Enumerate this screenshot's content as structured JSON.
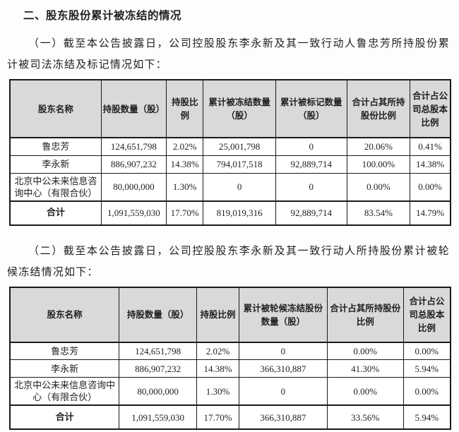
{
  "document": {
    "section_title": "二、股东股份累计被冻结的情况",
    "paragraph_1": "（一）截至本公告披露日，公司控股股东李永新及其一致行动人鲁忠芳所持股份累计被司法冻结及标记情况如下：",
    "paragraph_2": "（二）截至本公告披露日，公司控股股东李永新及其一致行动人所持股份累计被轮候冻结情况如下："
  },
  "colors": {
    "header_bg": "#d9d9d9",
    "border": "#1a1a1a",
    "text": "#1f1f1f",
    "page_bg": "#fdfdfd"
  },
  "frozen_table": {
    "headers": [
      "股东名称",
      "持股数量（股）",
      "持股比例",
      "累计被冻结数量（股）",
      "累计被标记数量（股）",
      "合计占其所持股份比例",
      "合计占公司总股本比例"
    ],
    "rows": [
      [
        "鲁忠芳",
        "124,651,798",
        "2.02%",
        "25,001,798",
        "0",
        "20.06%",
        "0.41%"
      ],
      [
        "李永新",
        "886,907,232",
        "14.38%",
        "794,017,518",
        "92,889,714",
        "100.00%",
        "14.38%"
      ],
      [
        "北京中公未来信息咨询中心（有限合伙）",
        "80,000,000",
        "1.30%",
        "0",
        "0",
        "0.00%",
        "0.00%"
      ],
      [
        "合计",
        "1,091,559,030",
        "17.70%",
        "819,019,316",
        "92,889,714",
        "83.54%",
        "14.79%"
      ]
    ]
  },
  "waiting_freeze_table": {
    "headers": [
      "股东名称",
      "持股数量（股）",
      "持股比例",
      "累计被轮候冻结股份数量（股）",
      "合计占其所持股份比例",
      "合计占公司总股本比例"
    ],
    "rows": [
      [
        "鲁忠芳",
        "124,651,798",
        "2.02%",
        "0",
        "0.00%",
        "0.00%"
      ],
      [
        "李永新",
        "886,907,232",
        "14.38%",
        "366,310,887",
        "41.30%",
        "5.94%"
      ],
      [
        "北京中公未来信息咨询中心（有限合伙）",
        "80,000,000",
        "1.30%",
        "0",
        "0.00%",
        "0.00%"
      ],
      [
        "合计",
        "1,091,559,030",
        "17.70%",
        "366,310,887",
        "33.56%",
        "5.94%"
      ]
    ]
  }
}
